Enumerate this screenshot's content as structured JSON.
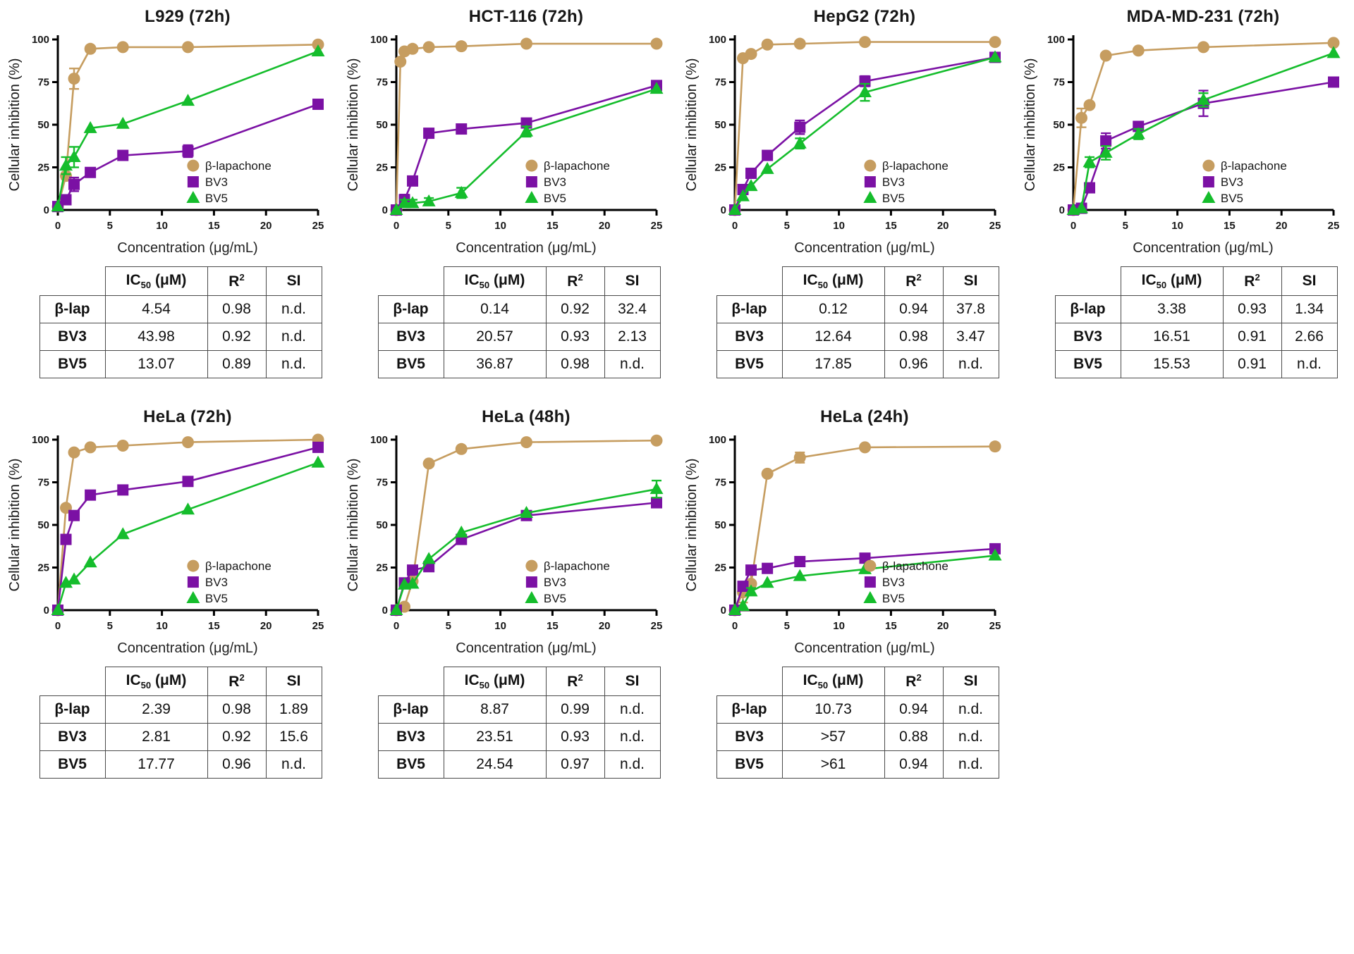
{
  "table_headers": {
    "corner": "",
    "ic50": {
      "base": "IC",
      "sub": "50",
      "rest": " (μM)"
    },
    "r2": {
      "base": "R",
      "sup": "2"
    },
    "si": "SI"
  },
  "legend": [
    {
      "label": "β-lapachone"
    },
    {
      "label": "BV3"
    },
    {
      "label": "BV5"
    }
  ],
  "series_styles": {
    "β-lapachone": {
      "color": "#C69D60",
      "marker": "circle"
    },
    "BV3": {
      "color": "#7B11A4",
      "marker": "square"
    },
    "BV5": {
      "color": "#15BD2C",
      "marker": "triangle"
    }
  },
  "chart_data": [
    {
      "type": "line",
      "title": "L929 (72h)",
      "xlabel": "Concentration (μg/mL)",
      "ylabel": "Cellular inhibition (%)",
      "xlim": [
        0,
        25
      ],
      "ylim": [
        0,
        100
      ],
      "xticks": [
        0,
        5,
        10,
        15,
        20,
        25
      ],
      "yticks": [
        0,
        25,
        50,
        75,
        100
      ],
      "legend_position": "lower right",
      "x": [
        0,
        0.78,
        1.56,
        3.125,
        6.25,
        12.5,
        25
      ],
      "series": [
        {
          "name": "β-lapachone",
          "values": [
            2,
            20,
            77,
            94.5,
            95.5,
            95.5,
            97
          ],
          "errors": [
            0,
            2,
            6,
            0,
            0,
            0,
            0
          ]
        },
        {
          "name": "BV3",
          "values": [
            2,
            6,
            15,
            22,
            32,
            34.5,
            62
          ],
          "errors": [
            0,
            0,
            4,
            0,
            0,
            3.5,
            0
          ]
        },
        {
          "name": "BV5",
          "values": [
            2,
            26,
            31,
            48,
            50.5,
            64,
            93
          ],
          "errors": [
            0,
            5,
            6,
            0,
            0,
            0,
            0
          ]
        }
      ],
      "table": {
        "rows": [
          [
            "β-lap",
            "4.54",
            "0.98",
            "n.d."
          ],
          [
            "BV3",
            "43.98",
            "0.92",
            "n.d."
          ],
          [
            "BV5",
            "13.07",
            "0.89",
            "n.d."
          ]
        ]
      }
    },
    {
      "type": "line",
      "title": "HCT-116 (72h)",
      "xlabel": "Concentration (μg/mL)",
      "ylabel": "Cellular inhibition (%)",
      "xlim": [
        0,
        25
      ],
      "ylim": [
        0,
        100
      ],
      "xticks": [
        0,
        5,
        10,
        15,
        20,
        25
      ],
      "yticks": [
        0,
        25,
        50,
        75,
        100
      ],
      "legend_position": "lower right",
      "x": [
        0,
        0.78,
        1.56,
        3.125,
        6.25,
        12.5,
        25
      ],
      "series": [
        {
          "name": "β-lapachone",
          "x": [
            0,
            0.39,
            0.78,
            1.56,
            3.125,
            6.25,
            12.5,
            25
          ],
          "values": [
            0,
            87,
            93,
            94.5,
            95.5,
            96,
            97.5,
            97.5
          ],
          "errors": [
            0,
            0,
            0,
            0,
            0,
            0,
            0,
            0
          ]
        },
        {
          "name": "BV3",
          "values": [
            0,
            6,
            17,
            45,
            47.5,
            51,
            73
          ],
          "errors": [
            0,
            3,
            0,
            0,
            0,
            0,
            0
          ]
        },
        {
          "name": "BV5",
          "values": [
            0,
            4,
            4,
            5,
            10,
            46,
            71
          ],
          "errors": [
            0,
            2,
            2,
            2,
            3,
            3,
            0
          ]
        }
      ],
      "table": {
        "rows": [
          [
            "β-lap",
            "0.14",
            "0.92",
            "32.4"
          ],
          [
            "BV3",
            "20.57",
            "0.93",
            "2.13"
          ],
          [
            "BV5",
            "36.87",
            "0.98",
            "n.d."
          ]
        ]
      }
    },
    {
      "type": "line",
      "title": "HepG2 (72h)",
      "xlabel": "Concentration (μg/mL)",
      "ylabel": "Cellular inhibition (%)",
      "xlim": [
        0,
        25
      ],
      "ylim": [
        0,
        100
      ],
      "xticks": [
        0,
        5,
        10,
        15,
        20,
        25
      ],
      "yticks": [
        0,
        25,
        50,
        75,
        100
      ],
      "legend_position": "lower right",
      "x": [
        0,
        0.78,
        1.56,
        3.125,
        6.25,
        12.5,
        25
      ],
      "series": [
        {
          "name": "β-lapachone",
          "values": [
            0,
            89,
            91.5,
            97,
            97.5,
            98.5,
            98.5
          ],
          "errors": [
            0,
            0,
            0,
            0,
            0,
            0,
            0
          ]
        },
        {
          "name": "BV3",
          "values": [
            0,
            12,
            21.5,
            32,
            48.5,
            75.5,
            89.5
          ],
          "errors": [
            0,
            0,
            0,
            0,
            4,
            3,
            0
          ]
        },
        {
          "name": "BV5",
          "values": [
            0,
            8,
            14,
            24,
            39,
            69,
            89.5
          ],
          "errors": [
            0,
            0,
            0,
            0,
            3,
            5,
            0
          ]
        }
      ],
      "table": {
        "rows": [
          [
            "β-lap",
            "0.12",
            "0.94",
            "37.8"
          ],
          [
            "BV3",
            "12.64",
            "0.98",
            "3.47"
          ],
          [
            "BV5",
            "17.85",
            "0.96",
            "n.d."
          ]
        ]
      }
    },
    {
      "type": "line",
      "title": "MDA-MD-231 (72h)",
      "xlabel": "Concentration (μg/mL)",
      "ylabel": "Cellular inhibition (%)",
      "xlim": [
        0,
        25
      ],
      "ylim": [
        0,
        100
      ],
      "xticks": [
        0,
        5,
        10,
        15,
        20,
        25
      ],
      "yticks": [
        0,
        25,
        50,
        75,
        100
      ],
      "legend_position": "lower right",
      "x": [
        0,
        0.78,
        1.56,
        3.125,
        6.25,
        12.5,
        25
      ],
      "series": [
        {
          "name": "β-lapachone",
          "values": [
            0,
            54,
            61.5,
            90.5,
            93.5,
            95.5,
            98
          ],
          "errors": [
            0,
            5.5,
            0,
            0,
            0,
            0,
            0
          ]
        },
        {
          "name": "BV3",
          "values": [
            0,
            1,
            13,
            40.5,
            49,
            62.5,
            75
          ],
          "errors": [
            0,
            0,
            0,
            4.5,
            0,
            7.5,
            2
          ]
        },
        {
          "name": "BV5",
          "values": [
            0,
            1,
            28,
            33.5,
            44.5,
            64.5,
            92
          ],
          "errors": [
            0,
            0,
            3,
            4,
            3,
            4,
            0
          ]
        }
      ],
      "table": {
        "rows": [
          [
            "β-lap",
            "3.38",
            "0.93",
            "1.34"
          ],
          [
            "BV3",
            "16.51",
            "0.91",
            "2.66"
          ],
          [
            "BV5",
            "15.53",
            "0.91",
            "n.d."
          ]
        ]
      }
    },
    {
      "type": "line",
      "title": "HeLa (72h)",
      "xlabel": "Concentration (μg/mL)",
      "ylabel": "Cellular inhibition (%)",
      "xlim": [
        0,
        25
      ],
      "ylim": [
        0,
        100
      ],
      "xticks": [
        0,
        5,
        10,
        15,
        20,
        25
      ],
      "yticks": [
        0,
        25,
        50,
        75,
        100
      ],
      "legend_position": "lower right",
      "x": [
        0,
        0.78,
        1.56,
        3.125,
        6.25,
        12.5,
        25
      ],
      "series": [
        {
          "name": "β-lapachone",
          "values": [
            0,
            60,
            92.5,
            95.5,
            96.5,
            98.5,
            100
          ],
          "errors": [
            0,
            0,
            0,
            0,
            0,
            0,
            0
          ]
        },
        {
          "name": "BV3",
          "values": [
            0,
            41.5,
            55.5,
            67.5,
            70.5,
            75.5,
            95.5
          ],
          "errors": [
            0,
            0,
            0,
            0,
            0,
            0,
            0
          ]
        },
        {
          "name": "BV5",
          "values": [
            0,
            16,
            18,
            28,
            44.5,
            59,
            86.5
          ],
          "errors": [
            0,
            0,
            0,
            0,
            0,
            0,
            0
          ]
        }
      ],
      "table": {
        "rows": [
          [
            "β-lap",
            "2.39",
            "0.98",
            "1.89"
          ],
          [
            "BV3",
            "2.81",
            "0.92",
            "15.6"
          ],
          [
            "BV5",
            "17.77",
            "0.96",
            "n.d."
          ]
        ]
      }
    },
    {
      "type": "line",
      "title": "HeLa (48h)",
      "xlabel": "Concentration (μg/mL)",
      "ylabel": "Cellular inhibition (%)",
      "xlim": [
        0,
        25
      ],
      "ylim": [
        0,
        100
      ],
      "xticks": [
        0,
        5,
        10,
        15,
        20,
        25
      ],
      "yticks": [
        0,
        25,
        50,
        75,
        100
      ],
      "legend_position": "lower right",
      "x": [
        0,
        0.78,
        1.56,
        3.125,
        6.25,
        12.5,
        25
      ],
      "series": [
        {
          "name": "β-lapachone",
          "values": [
            0,
            2,
            17,
            86,
            94.5,
            98.5,
            99.5
          ],
          "errors": [
            0,
            0,
            0,
            0,
            0,
            0,
            0
          ]
        },
        {
          "name": "BV3",
          "values": [
            0,
            16,
            23.5,
            25.5,
            41.5,
            55.5,
            63
          ],
          "errors": [
            0,
            2.5,
            0,
            0,
            0,
            0,
            0
          ]
        },
        {
          "name": "BV5",
          "values": [
            0,
            15,
            15.5,
            30,
            45.5,
            57,
            71
          ],
          "errors": [
            0,
            0,
            0,
            0,
            0,
            0,
            5
          ]
        }
      ],
      "table": {
        "rows": [
          [
            "β-lap",
            "8.87",
            "0.99",
            "n.d."
          ],
          [
            "BV3",
            "23.51",
            "0.93",
            "n.d."
          ],
          [
            "BV5",
            "24.54",
            "0.97",
            "n.d."
          ]
        ]
      }
    },
    {
      "type": "line",
      "title": "HeLa (24h)",
      "xlabel": "Concentration (μg/mL)",
      "ylabel": "Cellular inhibition (%)",
      "xlim": [
        0,
        25
      ],
      "ylim": [
        0,
        100
      ],
      "xticks": [
        0,
        5,
        10,
        15,
        20,
        25
      ],
      "yticks": [
        0,
        25,
        50,
        75,
        100
      ],
      "legend_position": "lower right",
      "x": [
        0,
        0.78,
        1.56,
        3.125,
        6.25,
        12.5,
        25
      ],
      "series": [
        {
          "name": "β-lapachone",
          "values": [
            0,
            10.5,
            15.5,
            80,
            89.5,
            95.5,
            96
          ],
          "errors": [
            0,
            6,
            6,
            0,
            3,
            0,
            0
          ]
        },
        {
          "name": "BV3",
          "values": [
            0,
            14,
            23.5,
            24.5,
            28.5,
            30.5,
            36
          ],
          "errors": [
            0,
            2,
            0,
            0,
            0,
            0,
            0
          ]
        },
        {
          "name": "BV5",
          "values": [
            0,
            2.5,
            11,
            16,
            20,
            24,
            32
          ],
          "errors": [
            0,
            0,
            2,
            0,
            0,
            0,
            0
          ]
        }
      ],
      "table": {
        "rows": [
          [
            "β-lap",
            "10.73",
            "0.94",
            "n.d."
          ],
          [
            "BV3",
            ">57",
            "0.88",
            "n.d."
          ],
          [
            "BV5",
            ">61",
            "0.94",
            "n.d."
          ]
        ]
      }
    }
  ]
}
